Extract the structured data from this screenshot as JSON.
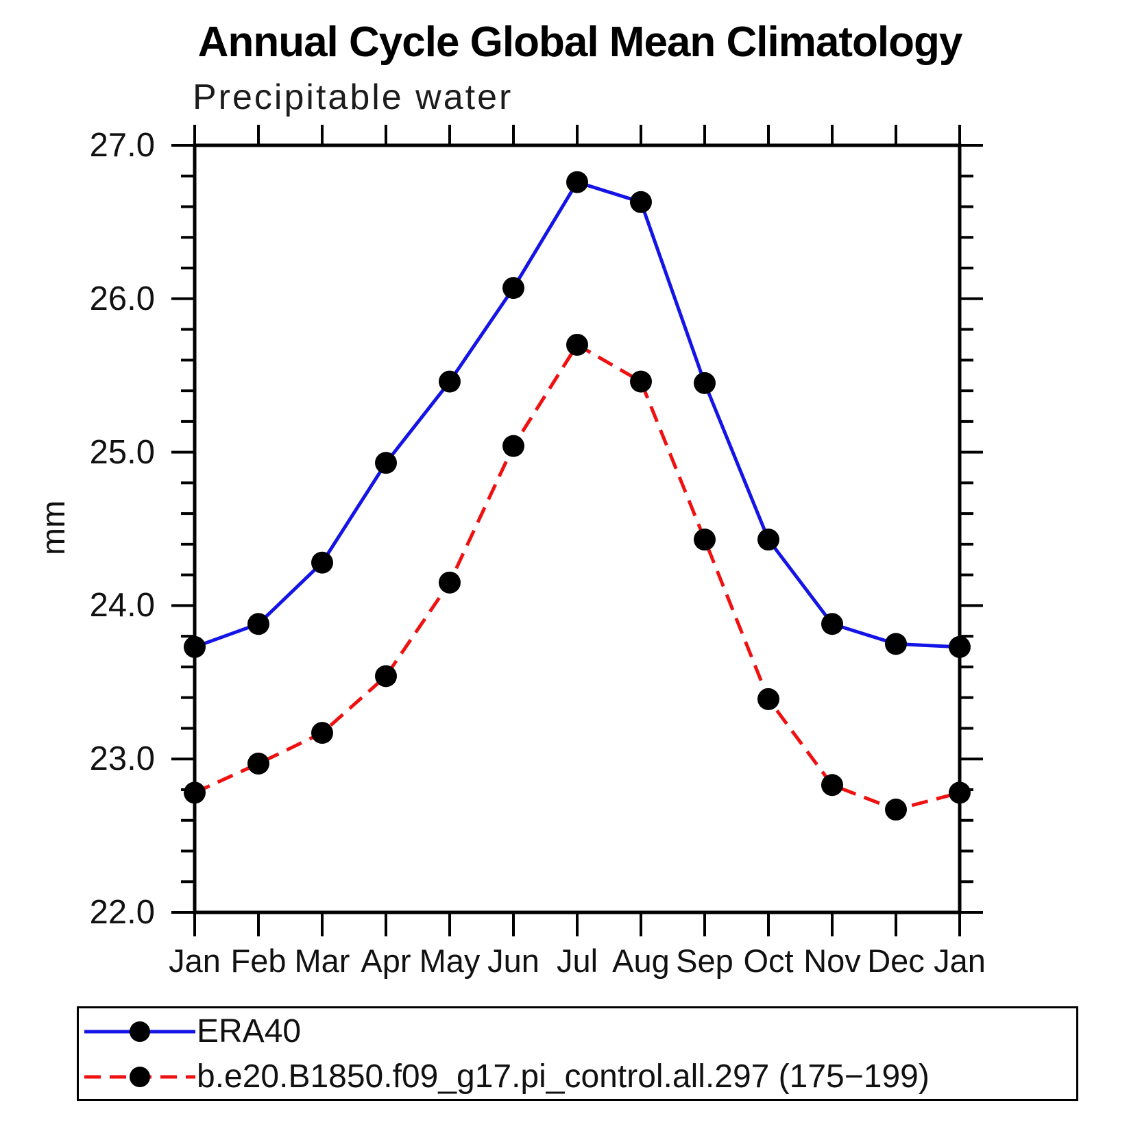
{
  "title": "Annual Cycle Global Mean Climatology",
  "subtitle": "Precipitable water",
  "chart_data": {
    "type": "line",
    "title": "Annual Cycle Global Mean Climatology",
    "subtitle": "Precipitable water",
    "xlabel": "",
    "ylabel": "mm",
    "categories": [
      "Jan",
      "Feb",
      "Mar",
      "Apr",
      "May",
      "Jun",
      "Jul",
      "Aug",
      "Sep",
      "Oct",
      "Nov",
      "Dec",
      "Jan"
    ],
    "ylim": [
      22.0,
      27.0
    ],
    "y_major_step": 1.0,
    "y_minor_step": 0.2,
    "y_tick_labels": [
      "27.0",
      "26.0",
      "25.0",
      "24.0",
      "23.0",
      "22.0"
    ],
    "grid": false,
    "legend_position": "bottom",
    "axis_color": "#000000",
    "series": [
      {
        "name": "ERA40",
        "color": "#1414e6",
        "style": "solid",
        "marker": "circle",
        "marker_color": "#000000",
        "values": [
          23.73,
          23.88,
          24.28,
          24.93,
          25.46,
          26.07,
          26.76,
          26.63,
          25.45,
          24.43,
          23.88,
          23.75,
          23.73
        ]
      },
      {
        "name": "b.e20.B1850.f09_g17.pi_control.all.297 (175−199)",
        "color": "#f01010",
        "style": "dashed",
        "marker": "circle",
        "marker_color": "#000000",
        "values": [
          22.78,
          22.97,
          23.17,
          23.54,
          24.15,
          25.04,
          25.7,
          25.46,
          24.43,
          23.39,
          22.83,
          22.67,
          22.78
        ]
      }
    ]
  }
}
